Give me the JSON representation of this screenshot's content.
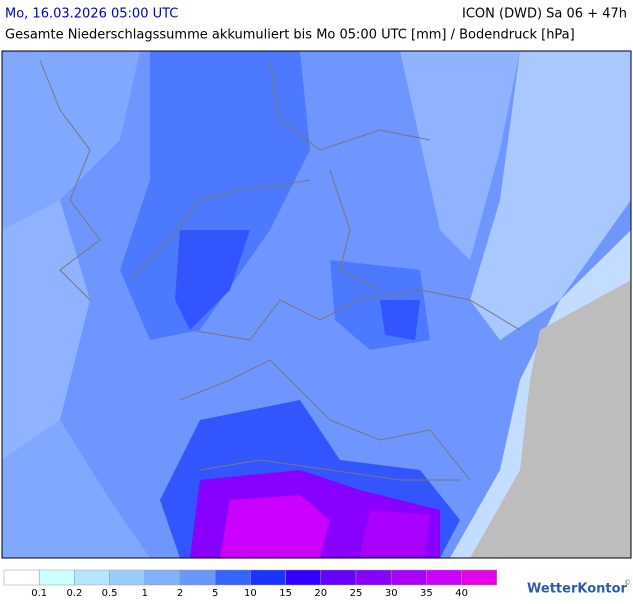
{
  "header": {
    "valid_time": "Mo, 16.03.2026 05:00 UTC",
    "model": "ICON (DWD) Sa 06 + 47h",
    "subtitle": "Gesamte Niederschlagssumme akkumuliert bis Mo 05:00 UTC [mm] / Bodendruck [hPa]"
  },
  "legend": {
    "thresholds": [
      0.1,
      0.2,
      0.5,
      1,
      2,
      5,
      10,
      15,
      20,
      25,
      30,
      35,
      40
    ],
    "colors": [
      "#ffffff",
      "#ccffff",
      "#b3e6ff",
      "#99ccff",
      "#80b3ff",
      "#6699ff",
      "#3366ff",
      "#1a33ff",
      "#3300ff",
      "#6600ff",
      "#8800ff",
      "#aa00ff",
      "#cc00ff",
      "#e600e6"
    ]
  },
  "logo": {
    "brand": "WetterKontor",
    "copyright": "©"
  }
}
